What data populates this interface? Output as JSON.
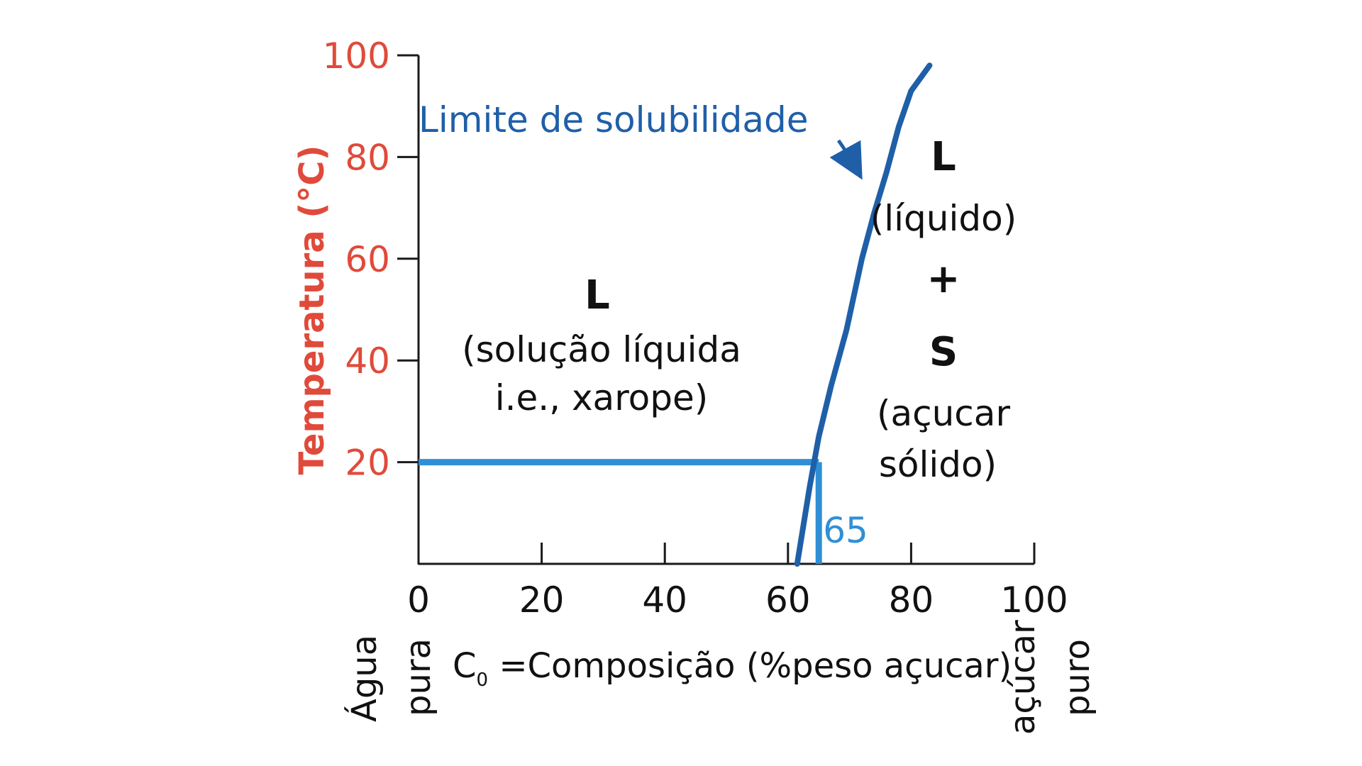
{
  "chart_data": {
    "type": "line",
    "ylabel": "Temperatura (°C)",
    "xlabel_prefix": "C",
    "xlabel_sub": "0",
    "xlabel_rest": " =Composição (%peso açucar)",
    "x_end_left": [
      "Água",
      "pura"
    ],
    "x_end_right": [
      "açúcar",
      "puro"
    ],
    "xlim": [
      0,
      100
    ],
    "ylim": [
      0,
      100
    ],
    "x_ticks": [
      0,
      20,
      40,
      60,
      80,
      100
    ],
    "x_tick_labels": [
      "0",
      "20",
      "40",
      "60",
      "80",
      "100"
    ],
    "y_ticks": [
      20,
      40,
      60,
      80,
      100
    ],
    "y_tick_labels": [
      "20",
      "40",
      "60",
      "80",
      "100"
    ],
    "series": [
      {
        "name": "Limite de solubilidade",
        "color": "#1f5fa8",
        "points": [
          [
            61.5,
            0
          ],
          [
            63.5,
            15
          ],
          [
            65,
            25
          ],
          [
            67,
            35
          ],
          [
            69.5,
            46
          ],
          [
            72,
            60
          ],
          [
            74,
            69
          ],
          [
            76,
            77
          ],
          [
            78,
            86
          ],
          [
            80,
            93
          ],
          [
            83,
            98
          ]
        ]
      }
    ],
    "guide": {
      "x": 65,
      "y": 20,
      "label": "65",
      "color": "#2f8fd6"
    },
    "annotations": {
      "solubility_label": "Limite de solubilidade",
      "left_region": {
        "symbol": "L",
        "lines": [
          "(solução líquida",
          "i.e., xarope)"
        ]
      },
      "right_region": {
        "symbol1": "L",
        "line1": "(líquido)",
        "plus": "+",
        "symbol2": "S",
        "lines": [
          "(açucar",
          "sólido)"
        ]
      }
    }
  }
}
